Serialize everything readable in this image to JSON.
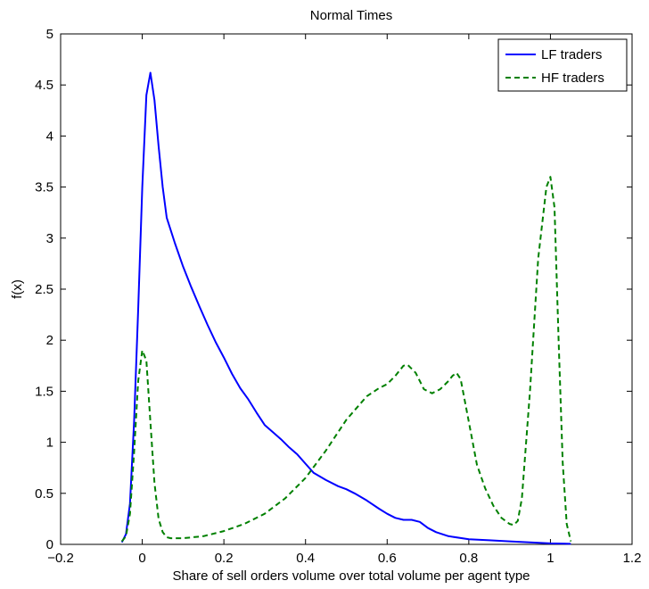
{
  "chart_data": {
    "type": "line",
    "title": "Normal Times",
    "xlabel": "Share of sell orders volume over total volume per agent type",
    "ylabel": "f(x)",
    "xlim": [
      -0.2,
      1.2
    ],
    "ylim": [
      0,
      5
    ],
    "xticks": [
      -0.2,
      0,
      0.2,
      0.4,
      0.6,
      0.8,
      1,
      1.2
    ],
    "xtick_labels": [
      "−0.2",
      "0",
      "0.2",
      "0.4",
      "0.6",
      "0.8",
      "1",
      "1.2"
    ],
    "yticks": [
      0,
      0.5,
      1,
      1.5,
      2,
      2.5,
      3,
      3.5,
      4,
      4.5,
      5
    ],
    "ytick_labels": [
      "0",
      "0.5",
      "1",
      "1.5",
      "2",
      "2.5",
      "3",
      "3.5",
      "4",
      "4.5",
      "5"
    ],
    "grid": false,
    "legend_position": "top-right",
    "series": [
      {
        "name": "LF traders",
        "color": "#0000ff",
        "line_style": "solid",
        "x": [
          -0.05,
          -0.04,
          -0.03,
          -0.02,
          -0.01,
          0.0,
          0.01,
          0.02,
          0.03,
          0.04,
          0.05,
          0.06,
          0.08,
          0.1,
          0.12,
          0.14,
          0.16,
          0.18,
          0.2,
          0.22,
          0.24,
          0.26,
          0.28,
          0.3,
          0.32,
          0.34,
          0.36,
          0.38,
          0.4,
          0.42,
          0.45,
          0.48,
          0.5,
          0.52,
          0.55,
          0.58,
          0.6,
          0.62,
          0.64,
          0.66,
          0.68,
          0.7,
          0.72,
          0.75,
          0.8,
          0.85,
          0.9,
          0.95,
          1.0,
          1.05
        ],
        "y": [
          0.02,
          0.1,
          0.4,
          1.2,
          2.3,
          3.5,
          4.4,
          4.62,
          4.35,
          3.9,
          3.5,
          3.2,
          2.95,
          2.72,
          2.52,
          2.33,
          2.15,
          1.98,
          1.83,
          1.67,
          1.53,
          1.42,
          1.29,
          1.17,
          1.1,
          1.03,
          0.95,
          0.88,
          0.79,
          0.7,
          0.63,
          0.57,
          0.54,
          0.5,
          0.43,
          0.35,
          0.3,
          0.26,
          0.24,
          0.24,
          0.22,
          0.16,
          0.12,
          0.08,
          0.05,
          0.04,
          0.03,
          0.02,
          0.01,
          0.005
        ]
      },
      {
        "name": "HF traders",
        "color": "#008000",
        "line_style": "dashed",
        "x": [
          -0.05,
          -0.04,
          -0.03,
          -0.02,
          -0.01,
          0.0,
          0.01,
          0.02,
          0.03,
          0.04,
          0.05,
          0.06,
          0.07,
          0.08,
          0.1,
          0.15,
          0.2,
          0.25,
          0.3,
          0.35,
          0.4,
          0.45,
          0.5,
          0.55,
          0.58,
          0.6,
          0.62,
          0.64,
          0.65,
          0.67,
          0.69,
          0.71,
          0.73,
          0.75,
          0.76,
          0.77,
          0.78,
          0.8,
          0.82,
          0.84,
          0.86,
          0.88,
          0.9,
          0.91,
          0.92,
          0.93,
          0.95,
          0.97,
          0.99,
          1.0,
          1.01,
          1.02,
          1.03,
          1.04,
          1.05
        ],
        "y": [
          0.03,
          0.08,
          0.3,
          0.9,
          1.6,
          1.9,
          1.8,
          1.2,
          0.6,
          0.25,
          0.12,
          0.07,
          0.06,
          0.06,
          0.06,
          0.08,
          0.13,
          0.2,
          0.3,
          0.45,
          0.65,
          0.92,
          1.22,
          1.45,
          1.53,
          1.57,
          1.65,
          1.75,
          1.76,
          1.68,
          1.52,
          1.48,
          1.52,
          1.6,
          1.65,
          1.68,
          1.62,
          1.2,
          0.78,
          0.55,
          0.38,
          0.26,
          0.2,
          0.19,
          0.23,
          0.45,
          1.5,
          2.8,
          3.5,
          3.6,
          3.3,
          2.0,
          0.8,
          0.2,
          0.03
        ]
      }
    ]
  }
}
